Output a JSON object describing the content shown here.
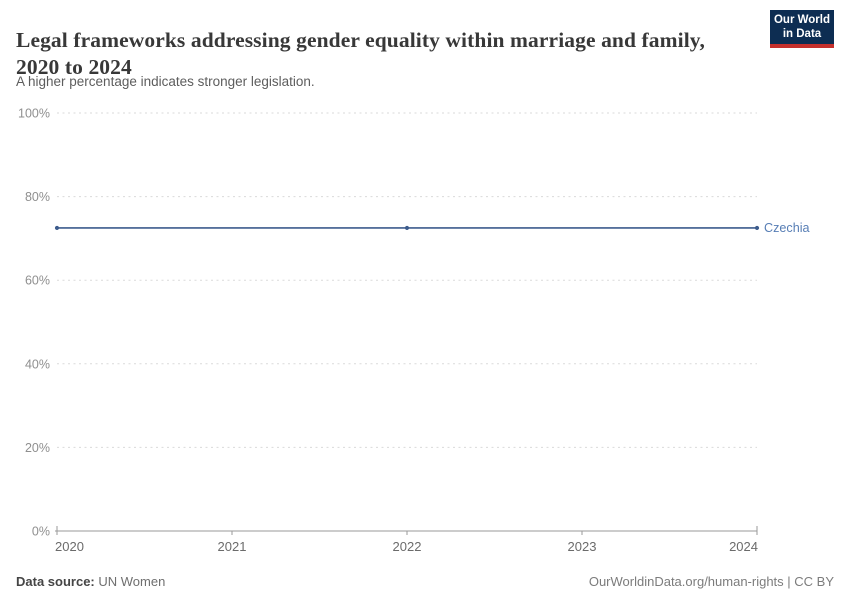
{
  "header": {
    "title": "Legal frameworks addressing gender equality within marriage and family, 2020 to 2024",
    "subtitle": "A higher percentage indicates stronger legislation."
  },
  "logo": {
    "line1": "Our World",
    "line2": "in Data",
    "bg_color": "#0d2d52",
    "bar_color": "#c5302c"
  },
  "chart_data": {
    "type": "line",
    "title": "Legal frameworks addressing gender equality within marriage and family, 2020 to 2024",
    "x": [
      2020,
      2021,
      2022,
      2023,
      2024
    ],
    "series": [
      {
        "name": "Czechia",
        "values": [
          72.5,
          72.5,
          72.5,
          72.5,
          72.5
        ],
        "color": "#3d5c8d",
        "label_color": "#577eb5"
      }
    ],
    "markers_at": [
      2020,
      2022,
      2024
    ],
    "xlabel": "",
    "ylabel": "",
    "ylim": [
      0,
      100
    ],
    "yticks": [
      0,
      20,
      40,
      60,
      80,
      100
    ],
    "ytick_labels": [
      "0%",
      "20%",
      "40%",
      "60%",
      "80%",
      "100%"
    ],
    "grid": true,
    "gridline_color": "#dadada",
    "axis_color": "#9a9a9a",
    "ytick_label_color": "#8f8f8f",
    "xtick_label_color": "#6b6b6b",
    "legend_position": "right-entity-label"
  },
  "footer": {
    "source_label": "Data source:",
    "source_value": "UN Women",
    "link": "OurWorldinData.org/human-rights | CC BY"
  }
}
